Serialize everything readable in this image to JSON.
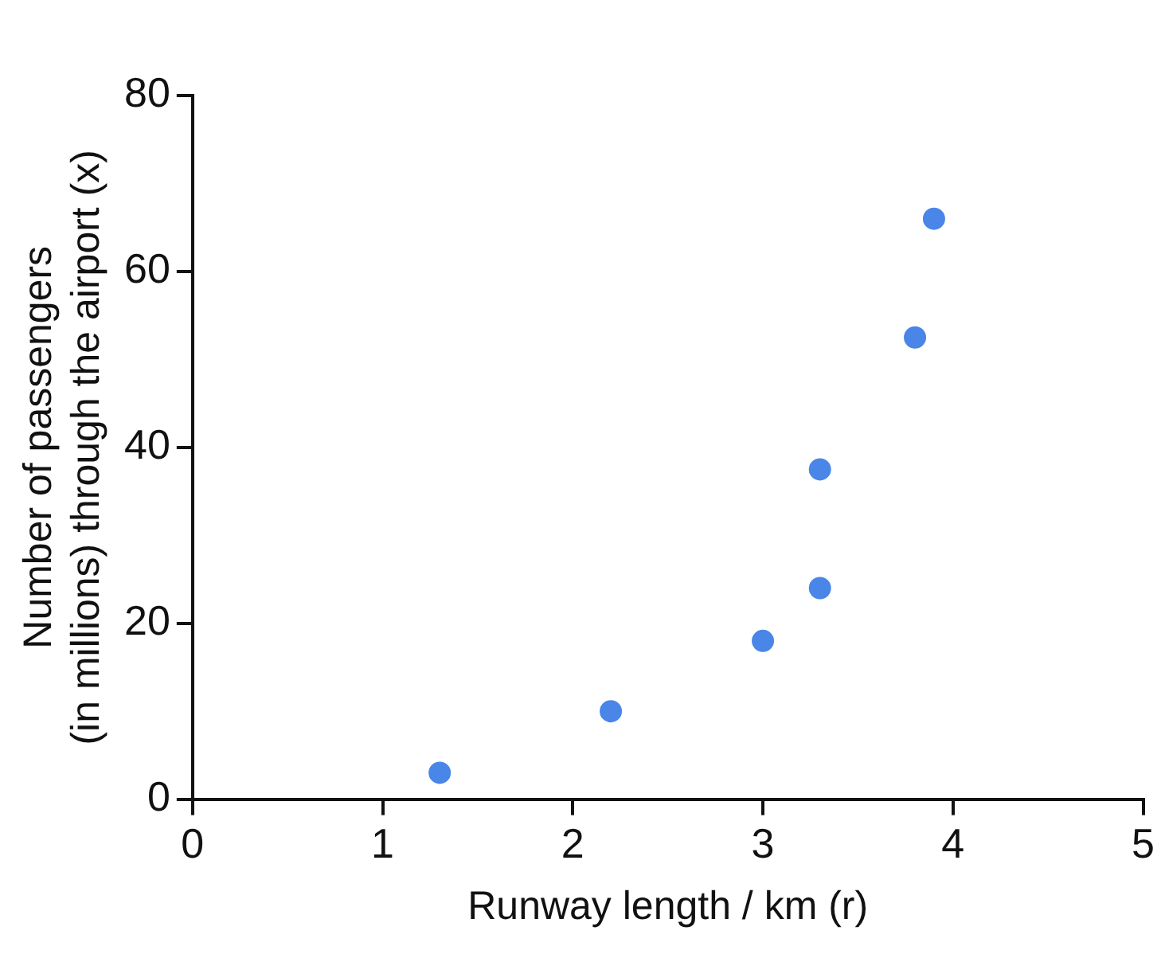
{
  "chart_data": {
    "type": "scatter",
    "xlabel": "Runway length / km (r)",
    "ylabel": "Number of passengers\n(in millions) through the airport (x)",
    "x": [
      1.3,
      2.2,
      3.0,
      3.3,
      3.3,
      3.8,
      3.9
    ],
    "series": [
      {
        "color": "#4a86e8",
        "values": [
          3,
          10,
          18,
          24,
          37.5,
          52.5,
          66
        ]
      }
    ],
    "xlim": [
      0,
      5
    ],
    "xticks": [
      0,
      1,
      2,
      3,
      4,
      5
    ],
    "ylim": [
      0,
      80
    ],
    "yticks": [
      0,
      20,
      40,
      60,
      80
    ],
    "grid": false,
    "legend": false,
    "marker": "circle"
  }
}
